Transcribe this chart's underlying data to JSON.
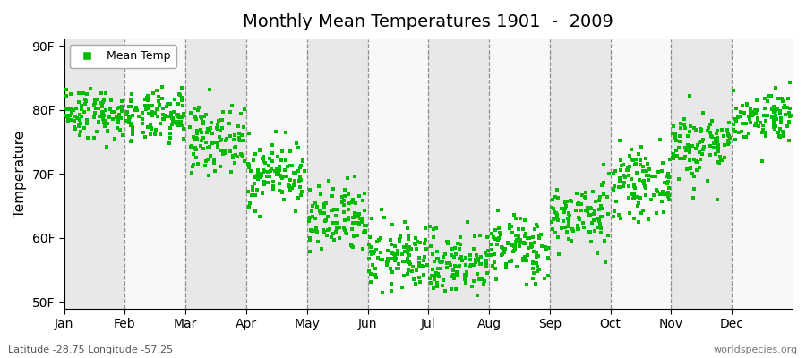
{
  "title": "Monthly Mean Temperatures 1901  -  2009",
  "ylabel": "Temperature",
  "xlabel_labels": [
    "Jan",
    "Feb",
    "Mar",
    "Apr",
    "May",
    "Jun",
    "Jul",
    "Aug",
    "Sep",
    "Oct",
    "Nov",
    "Dec"
  ],
  "ytick_labels": [
    "50F",
    "60F",
    "70F",
    "80F",
    "90F"
  ],
  "ytick_values": [
    50,
    60,
    70,
    80,
    90
  ],
  "ylim": [
    49,
    91
  ],
  "dot_color": "#00BB00",
  "bg_color": "#e8e8e8",
  "bg_alt_color": "#f8f8f8",
  "legend_label": "Mean Temp",
  "bottom_left": "Latitude -28.75 Longitude -57.25",
  "bottom_right": "worldspecies.org",
  "monthly_means": [
    79.5,
    78.8,
    75.5,
    70.0,
    62.5,
    57.0,
    56.0,
    58.5,
    63.5,
    68.5,
    74.5,
    79.0
  ],
  "monthly_stds": [
    2.0,
    2.0,
    2.5,
    2.5,
    2.8,
    2.5,
    2.5,
    2.5,
    2.5,
    2.5,
    2.8,
    2.0
  ],
  "n_years": 109,
  "seed": 42
}
